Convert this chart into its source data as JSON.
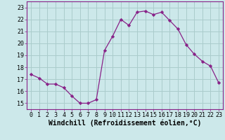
{
  "x": [
    0,
    1,
    2,
    3,
    4,
    5,
    6,
    7,
    8,
    9,
    10,
    11,
    12,
    13,
    14,
    15,
    16,
    17,
    18,
    19,
    20,
    21,
    22,
    23
  ],
  "y": [
    17.4,
    17.1,
    16.6,
    16.6,
    16.3,
    15.6,
    15.0,
    15.0,
    15.3,
    19.4,
    20.6,
    22.0,
    21.5,
    22.6,
    22.7,
    22.4,
    22.6,
    21.9,
    21.2,
    19.9,
    19.1,
    18.5,
    18.1,
    16.7
  ],
  "line_color": "#882288",
  "marker": "D",
  "marker_size": 2.2,
  "bg_color": "#cce8ea",
  "grid_color": "#aacccc",
  "xlabel": "Windchill (Refroidissement éolien,°C)",
  "xlim": [
    -0.5,
    23.5
  ],
  "ylim": [
    14.5,
    23.5
  ],
  "yticks": [
    15,
    16,
    17,
    18,
    19,
    20,
    21,
    22,
    23
  ],
  "xticks": [
    0,
    1,
    2,
    3,
    4,
    5,
    6,
    7,
    8,
    9,
    10,
    11,
    12,
    13,
    14,
    15,
    16,
    17,
    18,
    19,
    20,
    21,
    22,
    23
  ],
  "tick_fontsize": 6,
  "xlabel_fontsize": 7
}
